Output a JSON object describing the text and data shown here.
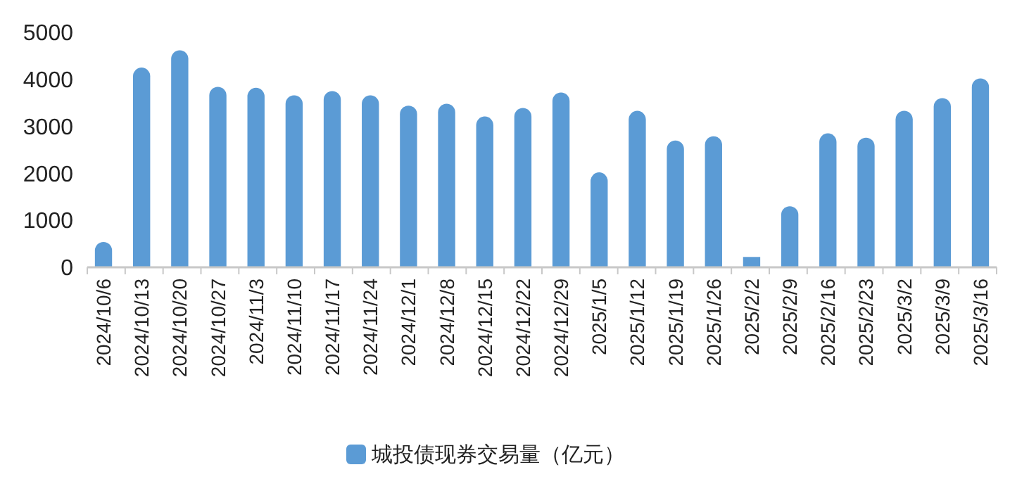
{
  "chart_data": {
    "type": "bar",
    "categories": [
      "2024/10/6",
      "2024/10/13",
      "2024/10/20",
      "2024/10/27",
      "2024/11/3",
      "2024/11/10",
      "2024/11/17",
      "2024/11/24",
      "2024/12/1",
      "2024/12/8",
      "2024/12/15",
      "2024/12/22",
      "2024/12/29",
      "2025/1/5",
      "2025/1/12",
      "2025/1/19",
      "2025/1/26",
      "2025/2/2",
      "2025/2/9",
      "2025/2/16",
      "2025/2/23",
      "2025/3/2",
      "2025/3/9",
      "2025/3/16"
    ],
    "series": [
      {
        "name": "城投债现券交易量（亿元）",
        "color": "#5b9bd5",
        "values": [
          540,
          4250,
          4620,
          3840,
          3820,
          3660,
          3750,
          3660,
          3440,
          3480,
          3210,
          3390,
          3720,
          2020,
          3330,
          2700,
          2790,
          220,
          1300,
          2850,
          2760,
          3330,
          3600,
          4020
        ]
      }
    ],
    "ylim": [
      0,
      5000
    ],
    "yticks": [
      0,
      1000,
      2000,
      3000,
      4000,
      5000
    ],
    "grid": false,
    "legend": "bottom"
  }
}
